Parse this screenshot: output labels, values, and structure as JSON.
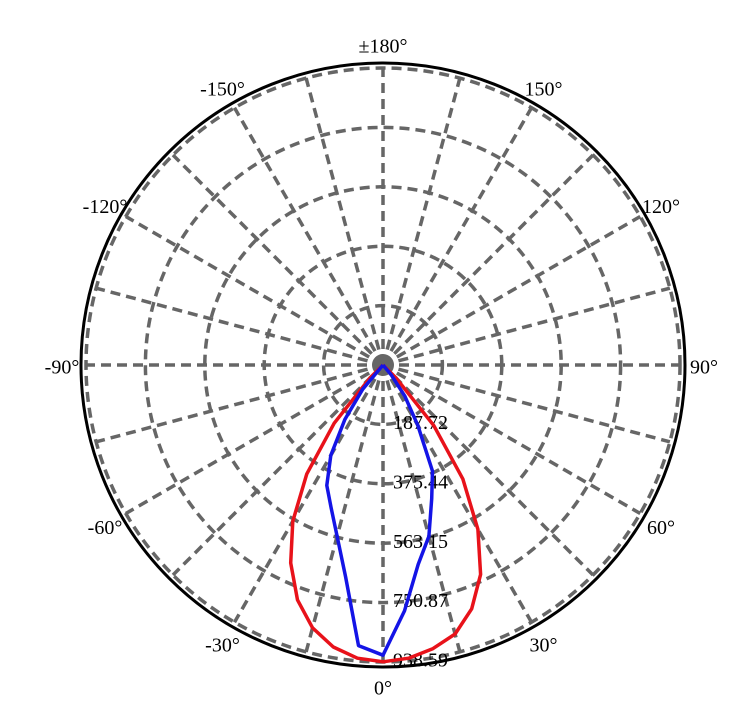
{
  "chart_data": {
    "type": "polar",
    "rlim": [
      0,
      938.59
    ],
    "rticks": [
      187.72,
      375.44,
      563.15,
      750.87,
      938.59
    ],
    "thetaticks": [
      {
        "value": -180,
        "label": "±180°"
      },
      {
        "value": -150,
        "label": "-150°"
      },
      {
        "value": -120,
        "label": "-120°"
      },
      {
        "value": -90,
        "label": "-90°"
      },
      {
        "value": -60,
        "label": "-60°"
      },
      {
        "value": -30,
        "label": "-30°"
      },
      {
        "value": 0,
        "label": "0°"
      },
      {
        "value": 30,
        "label": "30°"
      },
      {
        "value": 60,
        "label": "60°"
      },
      {
        "value": 90,
        "label": "90°"
      },
      {
        "value": 120,
        "label": "120°"
      },
      {
        "value": 150,
        "label": "150°"
      }
    ],
    "grid": true,
    "theta": [
      -50,
      -45,
      -40,
      -35,
      -30,
      -25,
      -20,
      -15,
      -10,
      -5,
      0,
      5,
      10,
      15,
      20,
      25,
      30,
      35,
      40,
      45,
      50
    ],
    "series": [
      {
        "color": "#e8121a",
        "values": [
          0,
          60,
          240,
          420,
          570,
          690,
          790,
          860,
          905,
          930,
          938,
          930,
          910,
          880,
          820,
          730,
          600,
          440,
          250,
          60,
          0
        ]
      },
      {
        "color": "#1414e6",
        "values": [
          0,
          0,
          100,
          210,
          330,
          420,
          480,
          560,
          680,
          890,
          917,
          780,
          640,
          560,
          450,
          370,
          220,
          120,
          40,
          0,
          0
        ]
      }
    ]
  }
}
